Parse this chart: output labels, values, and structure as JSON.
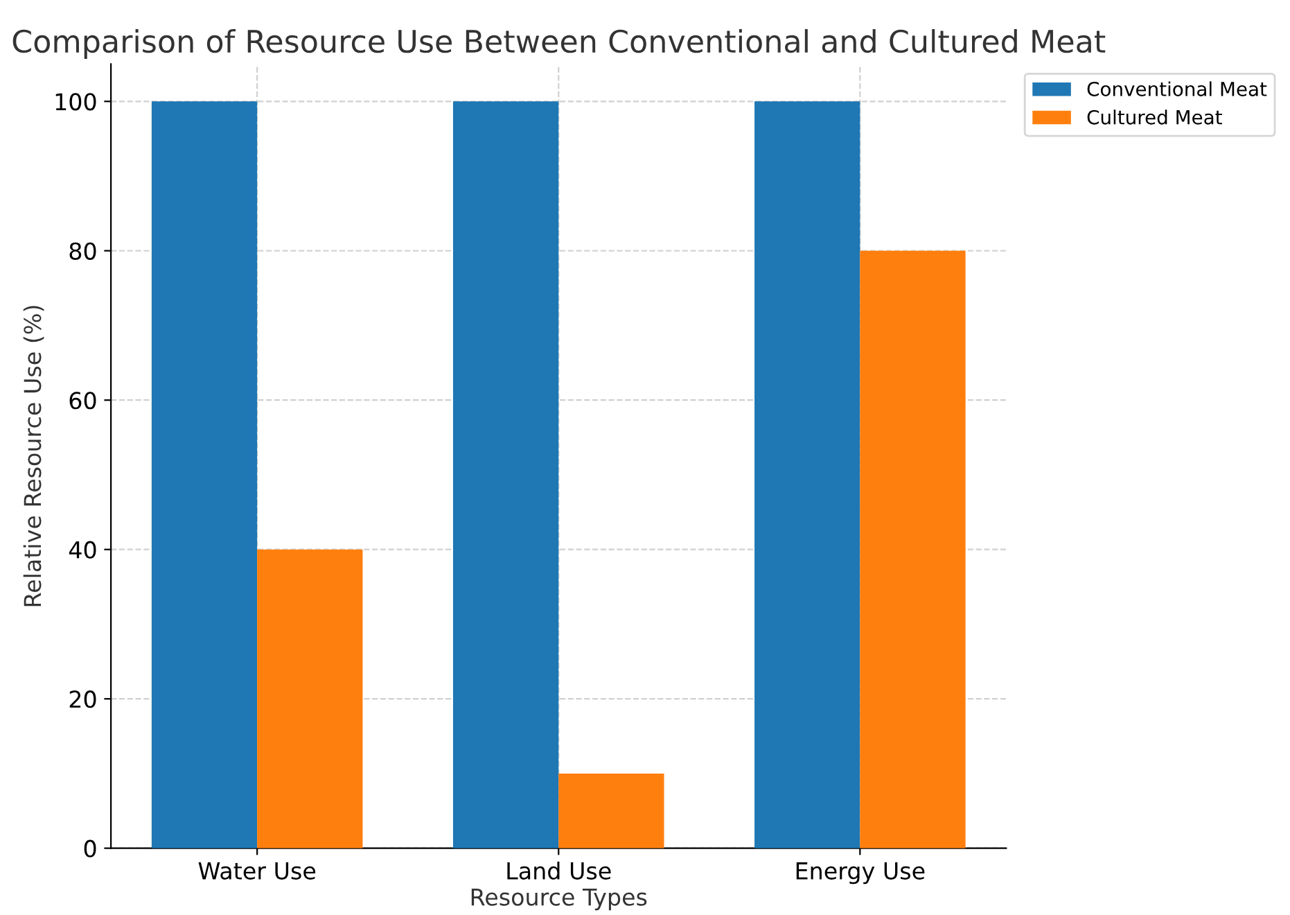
{
  "chart_data": {
    "type": "bar",
    "title": "Comparison of Resource Use Between Conventional and Cultured Meat",
    "xlabel": "Resource Types",
    "ylabel": "Relative Resource Use (%)",
    "categories": [
      "Water Use",
      "Land Use",
      "Energy Use"
    ],
    "series": [
      {
        "name": "Conventional Meat",
        "color": "#1f77b4",
        "values": [
          100,
          100,
          100
        ]
      },
      {
        "name": "Cultured Meat",
        "color": "#ff7f0e",
        "values": [
          40,
          10,
          80
        ]
      }
    ],
    "ylim": [
      0,
      105
    ],
    "yticks": [
      0,
      20,
      40,
      60,
      80,
      100
    ],
    "grid": true,
    "legend": "top right"
  }
}
